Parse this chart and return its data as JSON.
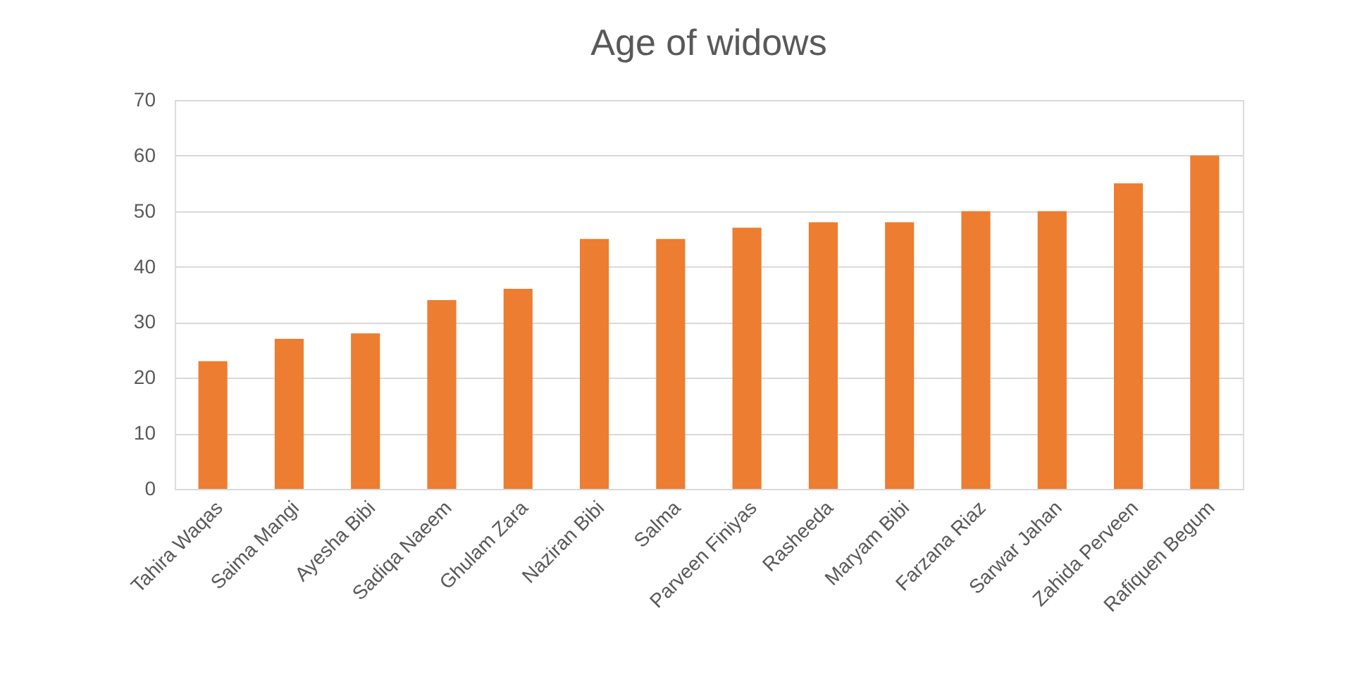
{
  "chart_data": {
    "type": "bar",
    "title": "Age of widows",
    "categories": [
      "Tahira Waqas",
      "Saima Mangi",
      "Ayesha Bibi",
      "Sadiqa Naeem",
      "Ghulam Zara",
      "Naziran Bibi",
      "Salma",
      "Parveen Finiyas",
      "Rasheeda",
      "Maryam Bibi",
      "Farzana Riaz",
      "Sarwar Jahan",
      "Zahida Perveen",
      "Rafiquen Begum"
    ],
    "values": [
      23,
      27,
      28,
      34,
      36,
      45,
      45,
      47,
      48,
      48,
      50,
      50,
      55,
      60
    ],
    "color": "#ed7d31",
    "ylim": [
      0,
      70
    ],
    "yticks": [
      0,
      10,
      20,
      30,
      40,
      50,
      60,
      70
    ],
    "grid": "y"
  }
}
